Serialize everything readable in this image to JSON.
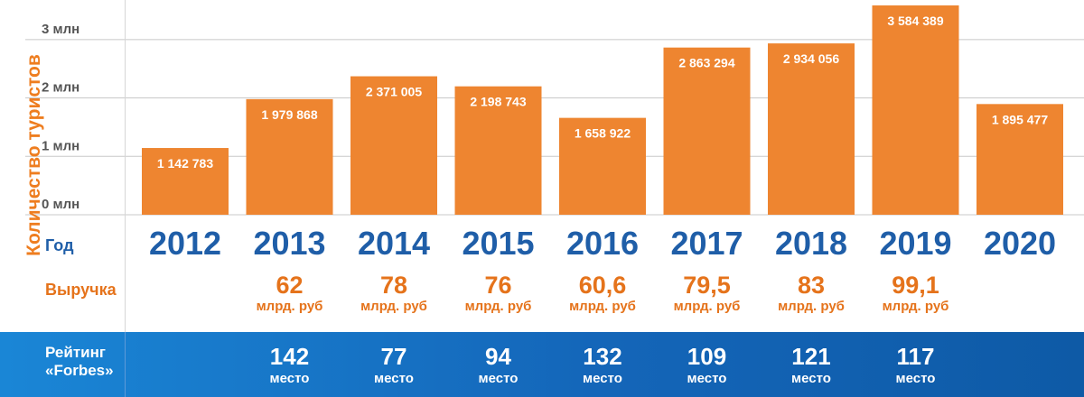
{
  "chart_data": {
    "type": "bar",
    "ylabel": "Количество туристов",
    "ylim": [
      0,
      3600000
    ],
    "ytick_labels": [
      "0 млн",
      "1 млн",
      "2 млн",
      "3 млн"
    ],
    "grid": true,
    "categories": [
      "2012",
      "2013",
      "2014",
      "2015",
      "2016",
      "2017",
      "2018",
      "2019",
      "2020"
    ],
    "values": [
      1142783,
      1979868,
      2371005,
      2198743,
      1658922,
      2863294,
      2934056,
      3584389,
      1895477
    ],
    "data_labels": [
      "1 142 783",
      "1 979 868",
      "2 371 005",
      "2 198 743",
      "1 658 922",
      "2 863 294",
      "2 934 056",
      "3 584 389",
      "1 895 477"
    ],
    "bar_color": "#ee8530"
  },
  "table": {
    "year_label": "Год",
    "revenue_label": "Выручка",
    "rating_label_line1": "Рейтинг",
    "rating_label_line2": "«Forbes»",
    "revenue": [
      {
        "value": "",
        "unit": ""
      },
      {
        "value": "62",
        "unit": "млрд. руб"
      },
      {
        "value": "78",
        "unit": "млрд. руб"
      },
      {
        "value": "76",
        "unit": "млрд. руб"
      },
      {
        "value": "60,6",
        "unit": "млрд. руб"
      },
      {
        "value": "79,5",
        "unit": "млрд. руб"
      },
      {
        "value": "83",
        "unit": "млрд. руб"
      },
      {
        "value": "99,1",
        "unit": "млрд. руб"
      },
      {
        "value": "",
        "unit": ""
      }
    ],
    "rating": [
      {
        "value": "",
        "unit": ""
      },
      {
        "value": "142",
        "unit": "место"
      },
      {
        "value": "77",
        "unit": "место"
      },
      {
        "value": "94",
        "unit": "место"
      },
      {
        "value": "132",
        "unit": "место"
      },
      {
        "value": "109",
        "unit": "место"
      },
      {
        "value": "121",
        "unit": "место"
      },
      {
        "value": "117",
        "unit": "место"
      },
      {
        "value": "",
        "unit": ""
      }
    ]
  },
  "colors": {
    "orange": "#ee7d1f",
    "blue": "#1f5ea8",
    "band": "#1466b9"
  }
}
